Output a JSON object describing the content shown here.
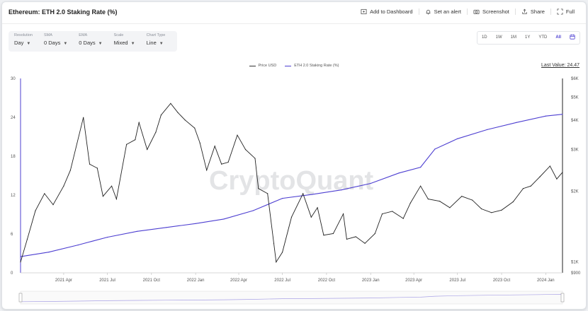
{
  "header": {
    "title": "Ethereum: ETH 2.0 Staking Rate (%)",
    "actions": [
      {
        "label": "Add to Dashboard",
        "icon": "dashboard-icon"
      },
      {
        "label": "Set an alert",
        "icon": "bell-icon"
      },
      {
        "label": "Screenshot",
        "icon": "camera-icon"
      },
      {
        "label": "Share",
        "icon": "share-icon"
      },
      {
        "label": "Full",
        "icon": "fullscreen-icon"
      }
    ]
  },
  "controls": [
    {
      "label": "Resolution",
      "value": "Day"
    },
    {
      "label": "SMA",
      "value": "0 Days"
    },
    {
      "label": "EMA",
      "value": "0 Days"
    },
    {
      "label": "Scale",
      "value": "Mixed"
    },
    {
      "label": "Chart Type",
      "value": "Line"
    }
  ],
  "ranges": [
    "1D",
    "1W",
    "1M",
    "1Y",
    "YTD",
    "All"
  ],
  "active_range": "All",
  "watermark": "CryptoQuant",
  "legend": [
    {
      "name": "Price USD",
      "color": "#333333"
    },
    {
      "name": "ETH 2.0 Staking Rate (%)",
      "color": "#4d3fd1"
    }
  ],
  "last_value": "Last Value: 24.47",
  "colors": {
    "price": "#222222",
    "staking": "#4d3fd1",
    "accent": "#4d3fd1"
  },
  "chart_data": {
    "type": "line",
    "x_ticks": [
      "2021 Apr",
      "2021 Jul",
      "2021 Oct",
      "2022 Jan",
      "2022 Apr",
      "2022 Jul",
      "2022 Oct",
      "2023 Jan",
      "2023 Apr",
      "2023 Jul",
      "2023 Oct",
      "2024 Jan"
    ],
    "left_axis": {
      "ticks": [
        "0",
        "6",
        "12",
        "18",
        "24",
        "30"
      ],
      "ylim": [
        0,
        30
      ]
    },
    "right_axis": {
      "ticks": [
        "$900",
        "$1K",
        "$2K",
        "$3K",
        "$4K",
        "$5K",
        "$6K"
      ],
      "scale": "log",
      "ylim": [
        900,
        6000
      ]
    },
    "series": [
      {
        "name": "ETH 2.0 Staking Rate (%)",
        "axis": "left",
        "x": [
          "2021-01-01",
          "2021-03-01",
          "2021-05-01",
          "2021-07-01",
          "2021-09-01",
          "2021-11-01",
          "2022-01-01",
          "2022-03-01",
          "2022-05-01",
          "2022-07-01",
          "2022-09-01",
          "2022-11-01",
          "2023-01-01",
          "2023-03-01",
          "2023-04-15",
          "2023-05-15",
          "2023-07-01",
          "2023-09-01",
          "2023-11-01",
          "2024-01-01",
          "2024-02-05"
        ],
        "values": [
          2.5,
          3.2,
          4.3,
          5.5,
          6.4,
          7.0,
          7.6,
          8.3,
          9.6,
          11.5,
          12.1,
          12.8,
          13.8,
          15.4,
          16.3,
          19.1,
          20.7,
          22.1,
          23.2,
          24.2,
          24.47
        ]
      },
      {
        "name": "Price USD",
        "axis": "right",
        "x": [
          "2021-01-01",
          "2021-01-15",
          "2021-02-01",
          "2021-02-20",
          "2021-03-10",
          "2021-04-01",
          "2021-04-15",
          "2021-05-12",
          "2021-05-25",
          "2021-06-10",
          "2021-06-22",
          "2021-07-10",
          "2021-07-20",
          "2021-08-10",
          "2021-08-28",
          "2021-09-05",
          "2021-09-22",
          "2021-10-10",
          "2021-10-21",
          "2021-11-10",
          "2021-11-25",
          "2021-12-10",
          "2021-12-30",
          "2022-01-10",
          "2022-01-24",
          "2022-02-10",
          "2022-02-24",
          "2022-03-10",
          "2022-03-29",
          "2022-04-15",
          "2022-05-05",
          "2022-05-12",
          "2022-05-31",
          "2022-06-13",
          "2022-06-18",
          "2022-07-01",
          "2022-07-20",
          "2022-08-13",
          "2022-08-30",
          "2022-09-12",
          "2022-09-25",
          "2022-10-15",
          "2022-11-05",
          "2022-11-12",
          "2022-12-01",
          "2022-12-20",
          "2023-01-10",
          "2023-01-25",
          "2023-02-15",
          "2023-03-10",
          "2023-03-25",
          "2023-04-15",
          "2023-05-01",
          "2023-05-25",
          "2023-06-15",
          "2023-07-10",
          "2023-08-01",
          "2023-08-20",
          "2023-09-10",
          "2023-10-01",
          "2023-10-25",
          "2023-11-15",
          "2023-12-01",
          "2023-12-20",
          "2024-01-10",
          "2024-01-24",
          "2024-02-05"
        ],
        "values": [
          1000,
          1250,
          1650,
          1950,
          1750,
          2100,
          2450,
          4100,
          2600,
          2500,
          1900,
          2100,
          1850,
          3150,
          3300,
          3900,
          3000,
          3550,
          4200,
          4700,
          4300,
          4000,
          3700,
          3200,
          2450,
          3100,
          2600,
          2650,
          3450,
          3000,
          2750,
          2050,
          1950,
          1200,
          1000,
          1100,
          1550,
          1950,
          1550,
          1700,
          1300,
          1320,
          1600,
          1250,
          1280,
          1200,
          1320,
          1600,
          1640,
          1530,
          1780,
          2100,
          1850,
          1810,
          1700,
          1900,
          1830,
          1680,
          1620,
          1660,
          1800,
          2050,
          2100,
          2300,
          2550,
          2250,
          2400
        ]
      }
    ],
    "grid": true,
    "legend_position": "top"
  }
}
